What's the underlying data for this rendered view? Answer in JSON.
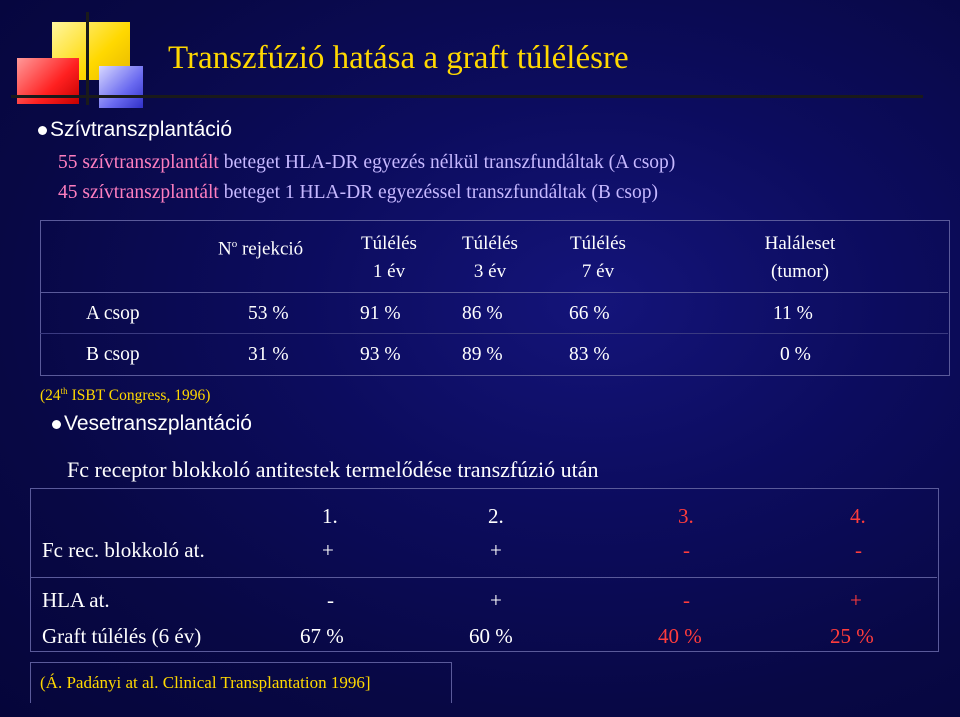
{
  "title": "Transzfúzió hatása a graft túlélésre",
  "section1": {
    "heading": "Szívtranszplantáció",
    "line1": {
      "a": "55 szívtranszplantált",
      "b": " beteget HLA-DR egyezés nélkül transzfundáltak (A csop)"
    },
    "line2": {
      "a": "45 szívtranszplantált",
      "b": " beteget 1 HLA-DR egyezéssel transzfundáltak (B csop)"
    },
    "table": {
      "headers": {
        "rejekcio_n": "N",
        "rejekcio_sup": "o",
        "rejekcio_rest": " rejekció",
        "t1_a": "Túlélés",
        "t1_b": "1 év",
        "t3_a": "Túlélés",
        "t3_b": "3 év",
        "t7_a": "Túlélés",
        "t7_b": "7 év",
        "hal_a": "Haláleset",
        "hal_b": "(tumor)"
      },
      "rows": [
        {
          "label": "A csop",
          "rej": "53 %",
          "t1": "91 %",
          "t3": "86 %",
          "t7": "66 %",
          "hal": "11 %"
        },
        {
          "label": "B csop",
          "rej": "31 %",
          "t1": "93 %",
          "t3": "89 %",
          "t7": "83 %",
          "hal": "0 %"
        }
      ]
    },
    "citation": {
      "pre": "(24",
      "sup": "th",
      "post": " ISBT Congress, 1996)"
    }
  },
  "section2": {
    "heading": "Vesetranszplantáció",
    "table_title": "Fc receptor blokkoló antitestek termelődése transzfúzió után",
    "columns": [
      "1.",
      "2.",
      "3.",
      "4."
    ],
    "rows": [
      {
        "label": "Fc rec. blokkoló at.",
        "values": [
          "+",
          "+",
          "-",
          "-"
        ]
      },
      {
        "label": "HLA at.",
        "values": [
          "-",
          "+",
          "-",
          "+"
        ]
      },
      {
        "label": "Graft túlélés (6 év)",
        "values": [
          "67 %",
          "60 %",
          "40 %",
          "25 %"
        ]
      }
    ],
    "citation": "(Á. Padányi at al. Clinical Transplantation 1996]"
  },
  "colors": {
    "yellow": "#ffd800",
    "red": "#ff3c3c",
    "magenta": "#ff7fc0",
    "lavender": "#c6b8ff",
    "background": "#0c0c5e"
  }
}
